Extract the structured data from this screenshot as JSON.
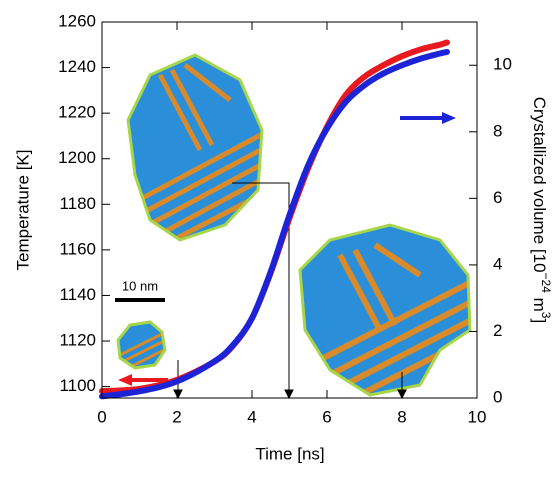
{
  "chart_data": {
    "type": "line",
    "xlabel": "Time [ns]",
    "ylabel": "Temperature [K]",
    "y2label": [
      "Crystallized volume [10",
      "−24",
      " m",
      "3",
      "]"
    ],
    "annotations": [
      "10 nm"
    ],
    "x": [
      0,
      1,
      2,
      3,
      3.5,
      4,
      4.5,
      5,
      5.5,
      6,
      6.5,
      7,
      7.5,
      8,
      8.5,
      9,
      9.2
    ],
    "series": [
      {
        "color": "#e8191f",
        "values": [
          1098,
          1099,
          1103,
          1111,
          1118,
          1130,
          1150,
          1174,
          1196,
          1214,
          1228,
          1236,
          1241,
          1245,
          1248,
          1250,
          1251
        ]
      },
      {
        "color": "#1d24d8",
        "axis": "y2",
        "values": [
          0.05,
          0.2,
          0.5,
          1.1,
          1.6,
          2.4,
          3.8,
          5.5,
          7.0,
          8.1,
          8.9,
          9.4,
          9.75,
          10.0,
          10.2,
          10.35,
          10.4
        ]
      }
    ],
    "xlim": [
      0,
      10
    ],
    "xticks": [
      0,
      2,
      4,
      6,
      8,
      10
    ],
    "ylim": [
      1095,
      1260
    ],
    "yticks": [
      1100,
      1120,
      1140,
      1160,
      1180,
      1200,
      1220,
      1240,
      1260
    ],
    "y2lim": [
      0,
      11.3
    ],
    "y2ticks": [
      0,
      2,
      4,
      6,
      8,
      10
    ]
  }
}
